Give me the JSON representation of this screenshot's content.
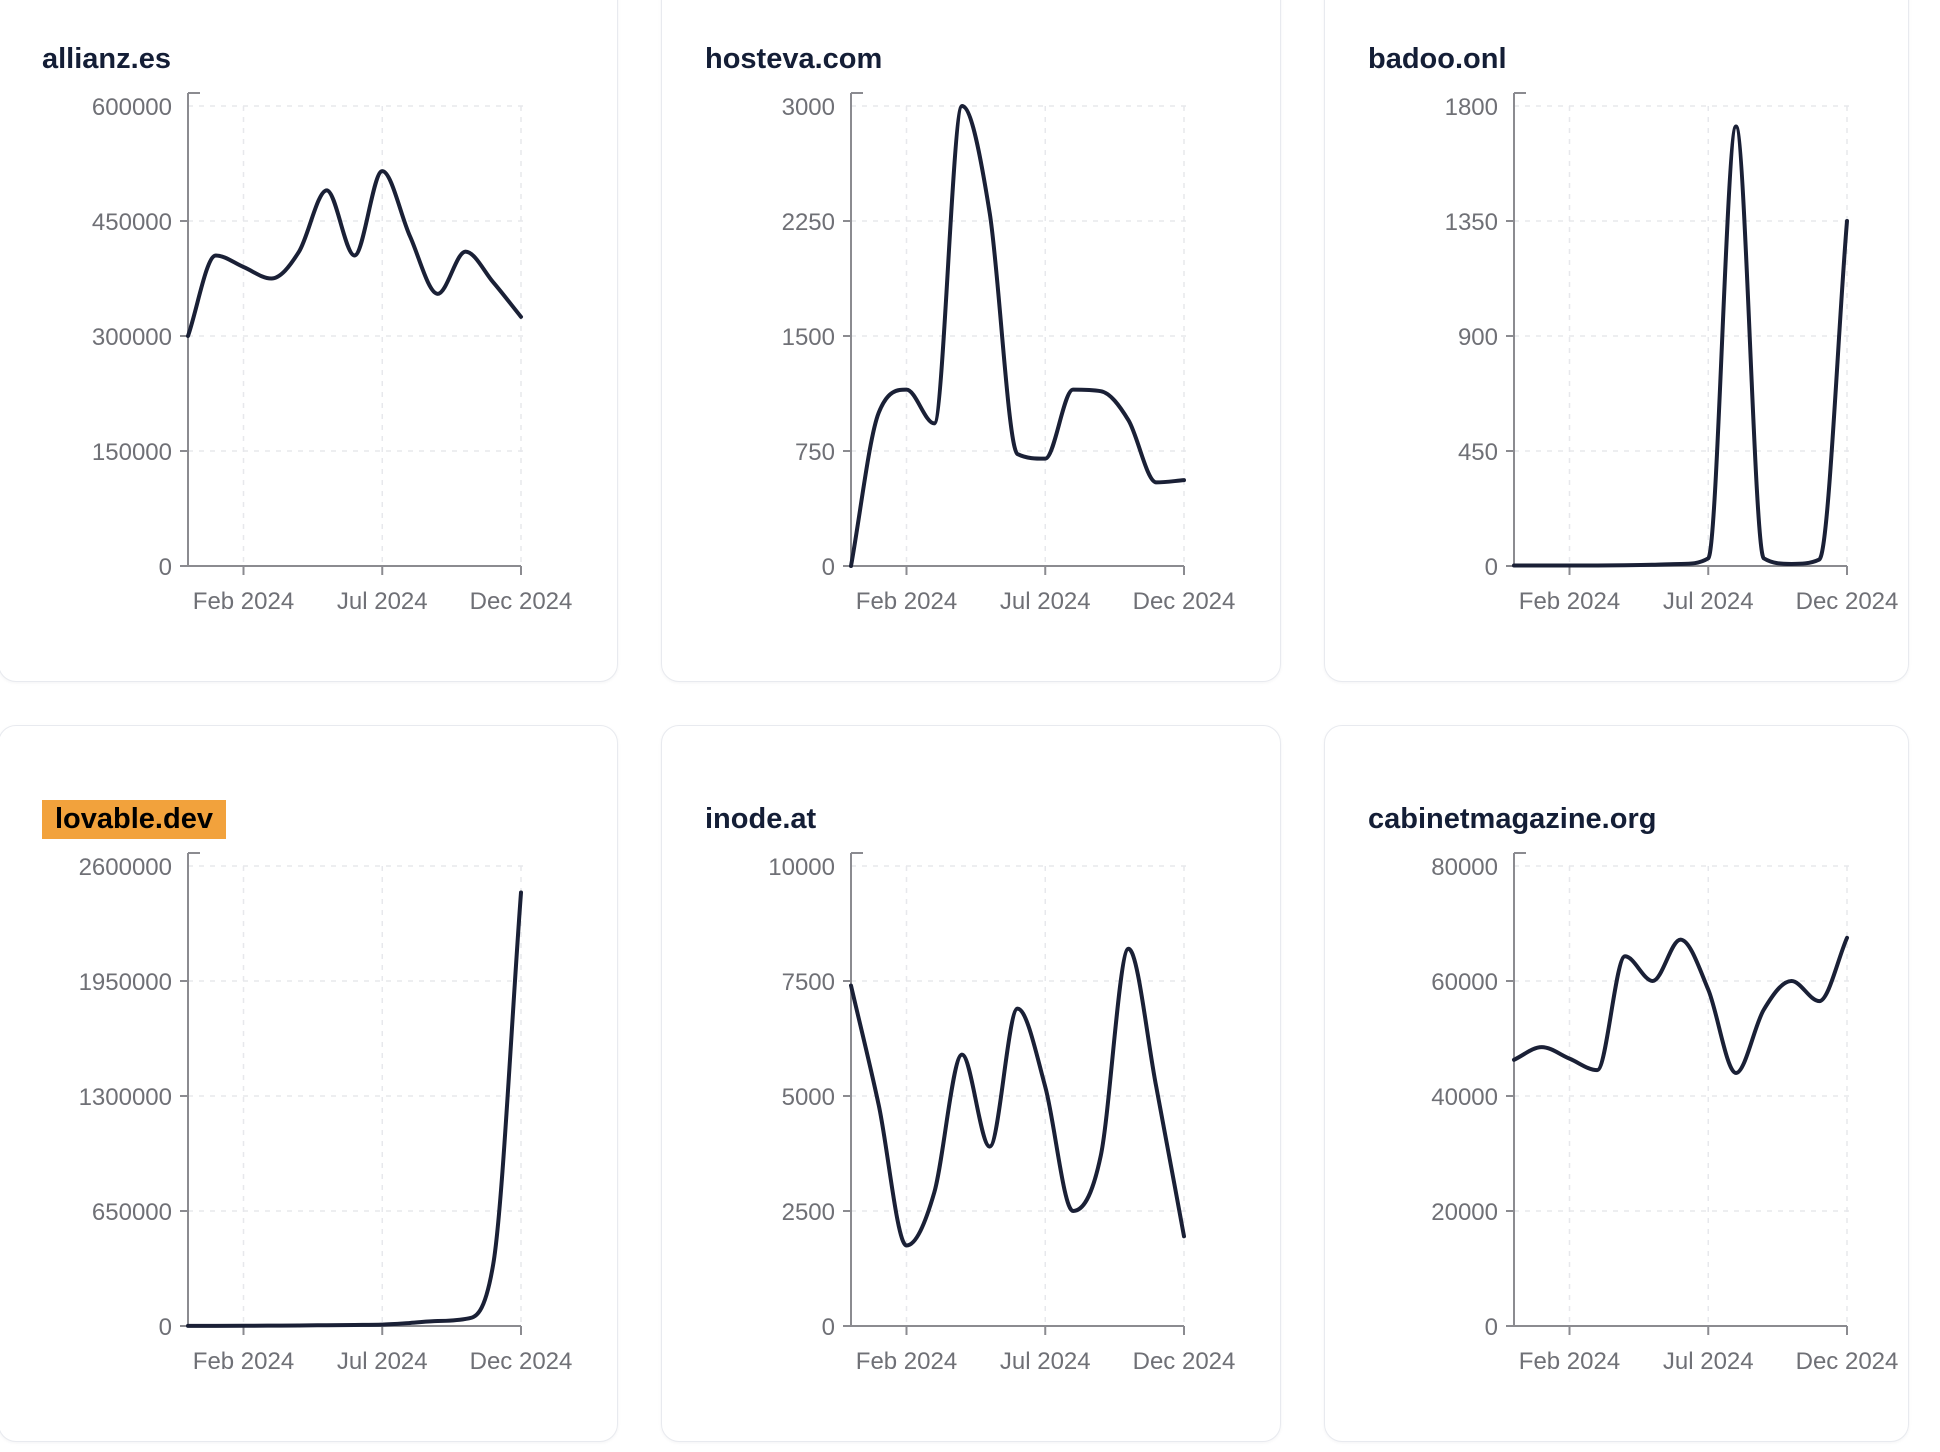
{
  "page": {
    "background": "#ffffff"
  },
  "style": {
    "line_color": "#1a2036",
    "title_color": "#141e36",
    "tick_label_color": "#6f7076",
    "axis_color": "#8b8b90",
    "grid_color": "#e7e8ec",
    "card_border_color": "#e8eaef",
    "highlight_bg": "#f2a23c",
    "highlight_text": "#000000"
  },
  "chart_data": [
    {
      "type": "line",
      "title": "allianz.es",
      "highlighted": false,
      "x": [
        "Dec 2023",
        "Jan 2024",
        "Feb 2024",
        "Mar 2024",
        "Apr 2024",
        "May 2024",
        "Jun 2024",
        "Jul 2024",
        "Aug 2024",
        "Sep 2024",
        "Oct 2024",
        "Nov 2024",
        "Dec 2024"
      ],
      "values": [
        300000,
        405000,
        390000,
        375000,
        410000,
        490000,
        405000,
        515000,
        430000,
        355000,
        410000,
        370000,
        325000
      ],
      "ylim": [
        0,
        600000
      ],
      "y_ticks": [
        "0",
        "150000",
        "300000",
        "450000",
        "600000"
      ],
      "x_ticks": [
        {
          "label": "Feb 2024",
          "i": 2
        },
        {
          "label": "Jul 2024",
          "i": 7
        },
        {
          "label": "Dec 2024",
          "i": 12
        }
      ],
      "grid": true,
      "legend": null
    },
    {
      "type": "line",
      "title": "hosteva.com",
      "highlighted": false,
      "x": [
        "Dec 2023",
        "Jan 2024",
        "Feb 2024",
        "Mar 2024",
        "Apr 2024",
        "May 2024",
        "Jun 2024",
        "Jul 2024",
        "Aug 2024",
        "Sep 2024",
        "Oct 2024",
        "Nov 2024",
        "Dec 2024"
      ],
      "values": [
        0,
        1000,
        1150,
        930,
        3000,
        2300,
        730,
        700,
        1150,
        1140,
        950,
        545,
        560
      ],
      "ylim": [
        0,
        3000
      ],
      "y_ticks": [
        "0",
        "750",
        "1500",
        "2250",
        "3000"
      ],
      "x_ticks": [
        {
          "label": "Feb 2024",
          "i": 2
        },
        {
          "label": "Jul 2024",
          "i": 7
        },
        {
          "label": "Dec 2024",
          "i": 12
        }
      ],
      "grid": true,
      "legend": null
    },
    {
      "type": "line",
      "title": "badoo.onl",
      "highlighted": false,
      "x": [
        "Dec 2023",
        "Jan 2024",
        "Feb 2024",
        "Mar 2024",
        "Apr 2024",
        "May 2024",
        "Jun 2024",
        "Jul 2024",
        "Aug 2024",
        "Sep 2024",
        "Oct 2024",
        "Nov 2024",
        "Dec 2024"
      ],
      "values": [
        2,
        2,
        2,
        2,
        3,
        5,
        8,
        30,
        1720,
        30,
        8,
        25,
        1350
      ],
      "ylim": [
        0,
        1800
      ],
      "y_ticks": [
        "0",
        "450",
        "900",
        "1350",
        "1800"
      ],
      "x_ticks": [
        {
          "label": "Feb 2024",
          "i": 2
        },
        {
          "label": "Jul 2024",
          "i": 7
        },
        {
          "label": "Dec 2024",
          "i": 12
        }
      ],
      "grid": true,
      "legend": null
    },
    {
      "type": "line",
      "title": "lovable.dev",
      "highlighted": true,
      "x": [
        "Dec 2023",
        "Jan 2024",
        "Feb 2024",
        "Mar 2024",
        "Apr 2024",
        "May 2024",
        "Jun 2024",
        "Jul 2024",
        "Aug 2024",
        "Sep 2024",
        "Oct 2024",
        "Nov 2024",
        "Dec 2024"
      ],
      "values": [
        500,
        800,
        1200,
        2000,
        3000,
        4500,
        6000,
        8000,
        17000,
        28000,
        40000,
        350000,
        2450000
      ],
      "ylim": [
        0,
        2600000
      ],
      "y_ticks": [
        "0",
        "650000",
        "1300000",
        "1950000",
        "2600000"
      ],
      "x_ticks": [
        {
          "label": "Feb 2024",
          "i": 2
        },
        {
          "label": "Jul 2024",
          "i": 7
        },
        {
          "label": "Dec 2024",
          "i": 12
        }
      ],
      "grid": true,
      "legend": null
    },
    {
      "type": "line",
      "title": "inode.at",
      "highlighted": false,
      "x": [
        "Dec 2023",
        "Jan 2024",
        "Feb 2024",
        "Mar 2024",
        "Apr 2024",
        "May 2024",
        "Jun 2024",
        "Jul 2024",
        "Aug 2024",
        "Sep 2024",
        "Oct 2024",
        "Nov 2024",
        "Dec 2024"
      ],
      "values": [
        7400,
        4800,
        1750,
        2900,
        5900,
        3900,
        6900,
        5200,
        2500,
        3700,
        8200,
        5200,
        1950
      ],
      "ylim": [
        0,
        10000
      ],
      "y_ticks": [
        "0",
        "2500",
        "5000",
        "7500",
        "10000"
      ],
      "x_ticks": [
        {
          "label": "Feb 2024",
          "i": 2
        },
        {
          "label": "Jul 2024",
          "i": 7
        },
        {
          "label": "Dec 2024",
          "i": 12
        }
      ],
      "grid": true,
      "legend": null
    },
    {
      "type": "line",
      "title": "cabinetmagazine.org",
      "highlighted": false,
      "x": [
        "Dec 2023",
        "Jan 2024",
        "Feb 2024",
        "Mar 2024",
        "Apr 2024",
        "May 2024",
        "Jun 2024",
        "Jul 2024",
        "Aug 2024",
        "Sep 2024",
        "Oct 2024",
        "Nov 2024",
        "Dec 2024"
      ],
      "values": [
        46300,
        48500,
        46500,
        44500,
        64300,
        60000,
        67200,
        58500,
        44000,
        55000,
        60000,
        56500,
        67500
      ],
      "ylim": [
        0,
        80000
      ],
      "y_ticks": [
        "0",
        "20000",
        "40000",
        "60000",
        "80000"
      ],
      "x_ticks": [
        {
          "label": "Feb 2024",
          "i": 2
        },
        {
          "label": "Jul 2024",
          "i": 7
        },
        {
          "label": "Dec 2024",
          "i": 12
        }
      ],
      "grid": true,
      "legend": null
    }
  ]
}
